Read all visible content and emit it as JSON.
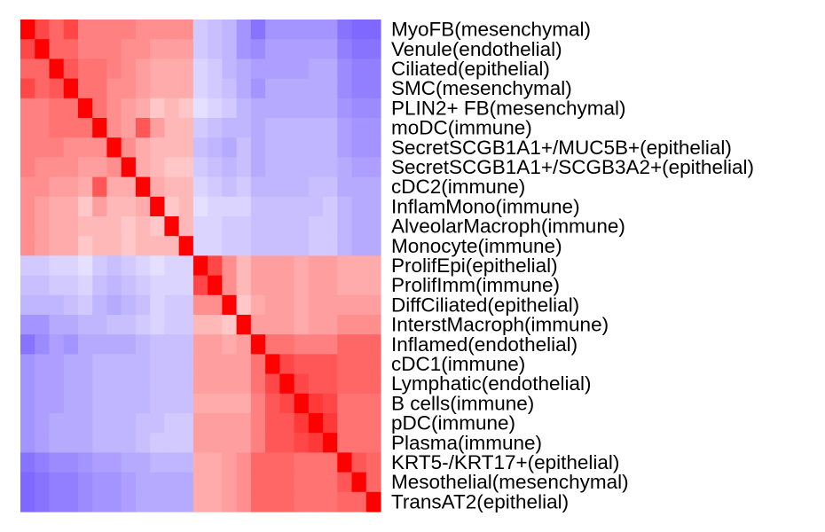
{
  "chart_data": {
    "type": "heatmap",
    "title": "",
    "xlabel": "",
    "ylabel": "",
    "col_labels_shown": false,
    "row_labels_side": "right",
    "symmetric": true,
    "scale": {
      "min": -1,
      "max": 1,
      "low_color": "#5a3dff",
      "mid_color": "#ffffff",
      "high_color": "#ff0000"
    },
    "labels": [
      "MyoFB(mesenchymal)",
      "Venule(endothelial)",
      "Ciliated(epithelial)",
      "SMC(mesenchymal)",
      "PLIN2+ FB(mesenchymal)",
      "moDC(immune)",
      "SecretSCGB1A1+/MUC5B+(epithelial)",
      "SecretSCGB1A1+/SCGB3A2+(epithelial)",
      "cDC2(immune)",
      "InflamMono(immune)",
      "AlveolarMacroph(immune)",
      "Monocyte(immune)",
      "ProlifEpi(epithelial)",
      "ProlifImm(immune)",
      "DiffCiliated(epithelial)",
      "InterstMacroph(immune)",
      "Inflamed(endothelial)",
      "cDC1(immune)",
      "Lymphatic(endothelial)",
      "B cells(immune)",
      "pDC(immune)",
      "Plasma(immune)",
      "KRT5-/KRT17+(epithelial)",
      "Mesothelial(mesenchymal)",
      "TransAT2(epithelial)"
    ],
    "values": [
      [
        1.0,
        0.72,
        0.6,
        0.72,
        0.5,
        0.5,
        0.5,
        0.5,
        0.44,
        0.44,
        0.44,
        0.44,
        -0.28,
        -0.33,
        -0.38,
        -0.55,
        -0.72,
        -0.55,
        -0.55,
        -0.55,
        -0.55,
        -0.55,
        -0.72,
        -0.78,
        -0.78
      ],
      [
        0.72,
        1.0,
        0.6,
        0.6,
        0.5,
        0.5,
        0.5,
        0.44,
        0.44,
        0.38,
        0.38,
        0.38,
        -0.28,
        -0.33,
        -0.38,
        -0.55,
        -0.6,
        -0.5,
        -0.5,
        -0.5,
        -0.5,
        -0.5,
        -0.66,
        -0.72,
        -0.72
      ],
      [
        0.6,
        0.6,
        1.0,
        0.66,
        0.55,
        0.55,
        0.5,
        0.44,
        0.38,
        0.33,
        0.33,
        0.33,
        -0.22,
        -0.28,
        -0.38,
        -0.44,
        -0.5,
        -0.5,
        -0.5,
        -0.5,
        -0.44,
        -0.44,
        -0.6,
        -0.66,
        -0.66
      ],
      [
        0.72,
        0.6,
        0.66,
        1.0,
        0.55,
        0.55,
        0.44,
        0.44,
        0.38,
        0.33,
        0.33,
        0.33,
        -0.22,
        -0.28,
        -0.33,
        -0.44,
        -0.55,
        -0.44,
        -0.44,
        -0.44,
        -0.44,
        -0.44,
        -0.6,
        -0.66,
        -0.66
      ],
      [
        0.5,
        0.5,
        0.55,
        0.55,
        1.0,
        0.55,
        0.44,
        0.38,
        0.33,
        0.22,
        0.28,
        0.22,
        -0.16,
        -0.22,
        -0.28,
        -0.38,
        -0.44,
        -0.44,
        -0.44,
        -0.44,
        -0.44,
        -0.44,
        -0.55,
        -0.6,
        -0.6
      ],
      [
        0.5,
        0.5,
        0.55,
        0.55,
        0.55,
        1.0,
        0.44,
        0.38,
        0.66,
        0.38,
        0.28,
        0.28,
        -0.28,
        -0.33,
        -0.38,
        -0.38,
        -0.44,
        -0.38,
        -0.38,
        -0.38,
        -0.38,
        -0.38,
        -0.5,
        -0.55,
        -0.55
      ],
      [
        0.5,
        0.5,
        0.5,
        0.44,
        0.44,
        0.44,
        1.0,
        0.44,
        0.33,
        0.28,
        0.28,
        0.28,
        -0.33,
        -0.38,
        -0.44,
        -0.33,
        -0.44,
        -0.38,
        -0.38,
        -0.38,
        -0.38,
        -0.38,
        -0.5,
        -0.55,
        -0.55
      ],
      [
        0.5,
        0.44,
        0.44,
        0.44,
        0.38,
        0.38,
        0.44,
        1.0,
        0.33,
        0.28,
        0.22,
        0.22,
        -0.28,
        -0.33,
        -0.38,
        -0.33,
        -0.44,
        -0.38,
        -0.38,
        -0.38,
        -0.38,
        -0.38,
        -0.44,
        -0.5,
        -0.5
      ],
      [
        0.44,
        0.44,
        0.38,
        0.38,
        0.33,
        0.66,
        0.33,
        0.33,
        1.0,
        0.33,
        0.28,
        0.28,
        -0.22,
        -0.28,
        -0.33,
        -0.28,
        -0.38,
        -0.38,
        -0.38,
        -0.38,
        -0.33,
        -0.33,
        -0.44,
        -0.44,
        -0.44
      ],
      [
        0.44,
        0.38,
        0.33,
        0.33,
        0.22,
        0.38,
        0.28,
        0.28,
        0.33,
        1.0,
        0.22,
        0.28,
        -0.16,
        -0.22,
        -0.22,
        -0.22,
        -0.33,
        -0.33,
        -0.33,
        -0.33,
        -0.33,
        -0.28,
        -0.38,
        -0.44,
        -0.44
      ],
      [
        0.44,
        0.38,
        0.33,
        0.33,
        0.28,
        0.28,
        0.28,
        0.22,
        0.28,
        0.22,
        1.0,
        0.28,
        -0.22,
        -0.22,
        -0.28,
        -0.28,
        -0.33,
        -0.33,
        -0.33,
        -0.33,
        -0.28,
        -0.28,
        -0.38,
        -0.44,
        -0.44
      ],
      [
        0.44,
        0.38,
        0.33,
        0.33,
        0.22,
        0.28,
        0.28,
        0.22,
        0.28,
        0.28,
        0.28,
        1.0,
        -0.22,
        -0.22,
        -0.28,
        -0.28,
        -0.33,
        -0.33,
        -0.33,
        -0.33,
        -0.28,
        -0.28,
        -0.38,
        -0.44,
        -0.44
      ],
      [
        -0.28,
        -0.28,
        -0.22,
        -0.22,
        -0.16,
        -0.28,
        -0.33,
        -0.28,
        -0.22,
        -0.16,
        -0.22,
        -0.22,
        1.0,
        0.72,
        0.44,
        0.28,
        0.38,
        0.38,
        0.38,
        0.33,
        0.38,
        0.38,
        0.33,
        0.33,
        0.33
      ],
      [
        -0.33,
        -0.33,
        -0.28,
        -0.28,
        -0.22,
        -0.33,
        -0.38,
        -0.33,
        -0.28,
        -0.22,
        -0.22,
        -0.22,
        0.72,
        1.0,
        0.44,
        0.28,
        0.38,
        0.38,
        0.38,
        0.33,
        0.38,
        0.38,
        0.33,
        0.33,
        0.33
      ],
      [
        -0.38,
        -0.38,
        -0.38,
        -0.33,
        -0.28,
        -0.38,
        -0.44,
        -0.38,
        -0.33,
        -0.22,
        -0.28,
        -0.28,
        0.44,
        0.44,
        1.0,
        0.22,
        0.33,
        0.38,
        0.38,
        0.33,
        0.38,
        0.38,
        0.38,
        0.38,
        0.38
      ],
      [
        -0.55,
        -0.55,
        -0.44,
        -0.44,
        -0.38,
        -0.38,
        -0.33,
        -0.33,
        -0.28,
        -0.22,
        -0.28,
        -0.28,
        0.28,
        0.28,
        0.22,
        1.0,
        0.38,
        0.38,
        0.38,
        0.33,
        0.38,
        0.38,
        0.44,
        0.44,
        0.44
      ],
      [
        -0.72,
        -0.6,
        -0.5,
        -0.55,
        -0.44,
        -0.44,
        -0.44,
        -0.44,
        -0.38,
        -0.33,
        -0.33,
        -0.33,
        0.38,
        0.38,
        0.33,
        0.38,
        1.0,
        0.55,
        0.55,
        0.5,
        0.5,
        0.5,
        0.6,
        0.6,
        0.6
      ],
      [
        -0.55,
        -0.5,
        -0.5,
        -0.44,
        -0.44,
        -0.38,
        -0.38,
        -0.38,
        -0.38,
        -0.33,
        -0.33,
        -0.33,
        0.38,
        0.38,
        0.38,
        0.38,
        0.55,
        1.0,
        0.72,
        0.66,
        0.66,
        0.66,
        0.6,
        0.6,
        0.6
      ],
      [
        -0.55,
        -0.5,
        -0.5,
        -0.44,
        -0.44,
        -0.38,
        -0.38,
        -0.38,
        -0.38,
        -0.33,
        -0.33,
        -0.33,
        0.38,
        0.38,
        0.38,
        0.38,
        0.55,
        0.72,
        1.0,
        0.72,
        0.66,
        0.66,
        0.6,
        0.6,
        0.6
      ],
      [
        -0.55,
        -0.5,
        -0.5,
        -0.44,
        -0.44,
        -0.38,
        -0.38,
        -0.38,
        -0.38,
        -0.33,
        -0.33,
        -0.33,
        0.33,
        0.33,
        0.33,
        0.33,
        0.5,
        0.66,
        0.72,
        1.0,
        0.78,
        0.72,
        0.55,
        0.55,
        0.55
      ],
      [
        -0.55,
        -0.5,
        -0.44,
        -0.44,
        -0.44,
        -0.38,
        -0.38,
        -0.38,
        -0.33,
        -0.33,
        -0.28,
        -0.28,
        0.38,
        0.38,
        0.38,
        0.38,
        0.5,
        0.66,
        0.66,
        0.78,
        1.0,
        0.78,
        0.55,
        0.55,
        0.55
      ],
      [
        -0.55,
        -0.5,
        -0.44,
        -0.44,
        -0.44,
        -0.38,
        -0.38,
        -0.38,
        -0.33,
        -0.28,
        -0.28,
        -0.28,
        0.38,
        0.38,
        0.38,
        0.38,
        0.5,
        0.66,
        0.66,
        0.72,
        0.78,
        1.0,
        0.55,
        0.55,
        0.55
      ],
      [
        -0.72,
        -0.66,
        -0.6,
        -0.6,
        -0.55,
        -0.5,
        -0.5,
        -0.44,
        -0.44,
        -0.38,
        -0.38,
        -0.38,
        0.33,
        0.33,
        0.38,
        0.44,
        0.6,
        0.6,
        0.6,
        0.55,
        0.55,
        0.55,
        1.0,
        0.66,
        0.6
      ],
      [
        -0.78,
        -0.72,
        -0.66,
        -0.66,
        -0.6,
        -0.55,
        -0.55,
        -0.5,
        -0.44,
        -0.44,
        -0.44,
        -0.44,
        0.33,
        0.33,
        0.38,
        0.44,
        0.6,
        0.6,
        0.6,
        0.55,
        0.55,
        0.55,
        0.66,
        1.0,
        0.6
      ],
      [
        -0.78,
        -0.72,
        -0.66,
        -0.66,
        -0.6,
        -0.55,
        -0.55,
        -0.5,
        -0.44,
        -0.44,
        -0.44,
        -0.44,
        0.33,
        0.33,
        0.38,
        0.44,
        0.6,
        0.6,
        0.6,
        0.55,
        0.55,
        0.55,
        0.6,
        0.6,
        1.0
      ]
    ]
  }
}
